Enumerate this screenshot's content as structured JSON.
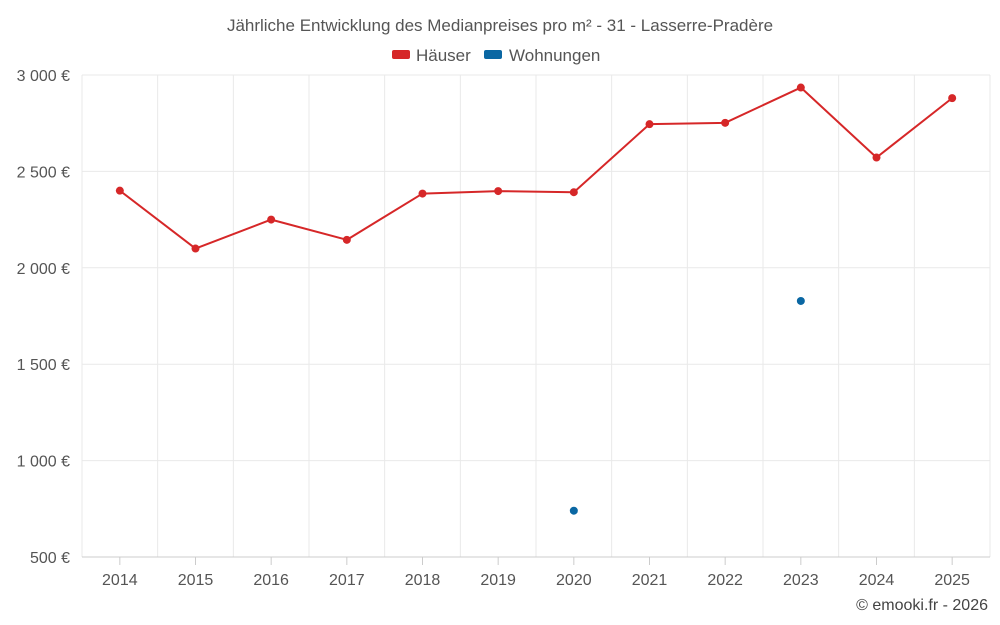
{
  "chart_data": {
    "type": "line",
    "title": "Jährliche Entwicklung des Medianpreises pro m² - 31 - Lasserre-Pradère",
    "categories": [
      "2014",
      "2015",
      "2016",
      "2017",
      "2018",
      "2019",
      "2020",
      "2021",
      "2022",
      "2023",
      "2024",
      "2025"
    ],
    "series": [
      {
        "name": "Häuser",
        "color": "#d62728",
        "values": [
          2400,
          2100,
          2250,
          2145,
          2385,
          2398,
          2392,
          2745,
          2752,
          2935,
          2572,
          2880
        ]
      },
      {
        "name": "Wohnungen",
        "color": "#0a67a3",
        "values": [
          null,
          null,
          null,
          null,
          null,
          null,
          740,
          null,
          null,
          1828,
          null,
          null
        ]
      }
    ],
    "ylim": [
      500,
      3000
    ],
    "yticks": [
      500,
      1000,
      1500,
      2000,
      2500,
      3000
    ],
    "ytick_labels": [
      "500 €",
      "1 000 €",
      "1 500 €",
      "2 000 €",
      "2 500 €",
      "3 000 €"
    ],
    "xlabel": "",
    "ylabel": "",
    "grid": true,
    "legend_position": "top-center"
  },
  "credit": "© emooki.fr - 2026"
}
